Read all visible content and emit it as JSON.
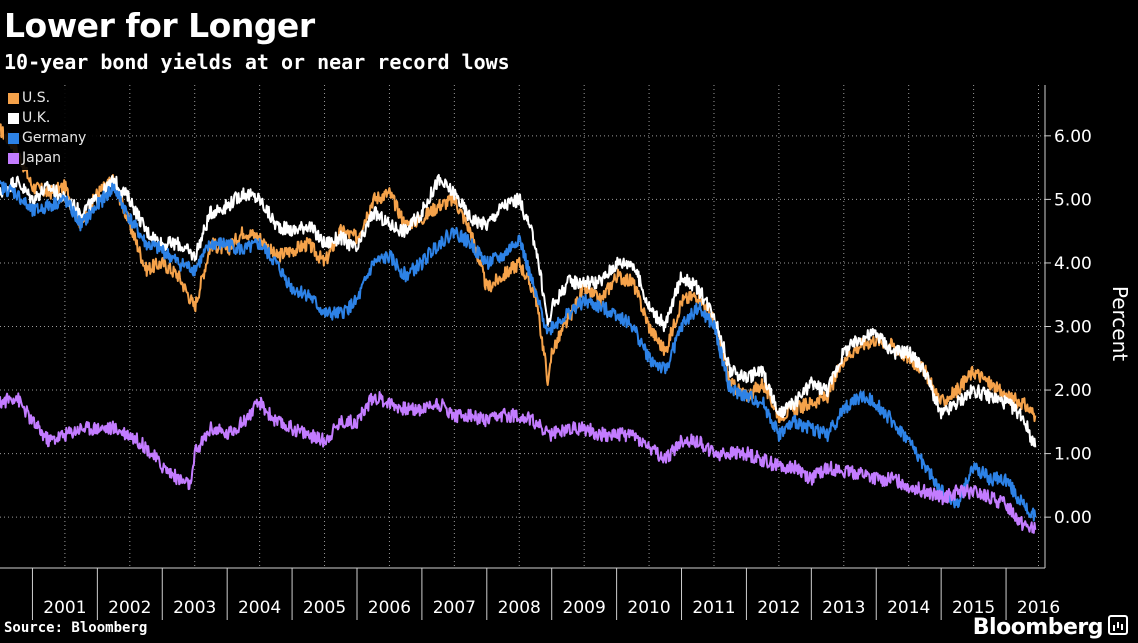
{
  "header": {
    "title": "Lower for Longer",
    "subtitle": "10-year bond yields at or near record lows"
  },
  "footer": {
    "source": "Source: Bloomberg",
    "brand": "Bloomberg"
  },
  "colors": {
    "background": "#000000",
    "us": "#f5a24a",
    "uk": "#ffffff",
    "germany": "#2d82e6",
    "japan": "#c37cff",
    "grid": "#9a9a9a"
  },
  "chart_data": {
    "type": "line",
    "title": "Lower for Longer",
    "subtitle": "10-year bond yields at or near record lows",
    "ylabel": "Percent",
    "ylim": [
      -0.8,
      6.8
    ],
    "yticks": [
      0,
      1,
      2,
      3,
      4,
      5,
      6
    ],
    "ytick_labels": [
      "0.00",
      "1.00",
      "2.00",
      "3.00",
      "4.00",
      "5.00",
      "6.00"
    ],
    "xlim": [
      2000.5,
      2016.6
    ],
    "x_labels": [
      "2001",
      "2002",
      "2003",
      "2004",
      "2005",
      "2006",
      "2007",
      "2008",
      "2009",
      "2010",
      "2011",
      "2012",
      "2013",
      "2014",
      "2015",
      "2016"
    ],
    "grid": true,
    "legend_position": "top-left",
    "series": [
      {
        "name": "U.S.",
        "color": "#f5a24a",
        "x": [
          2000.5,
          2000.75,
          2001.0,
          2001.25,
          2001.5,
          2001.75,
          2002.0,
          2002.25,
          2002.5,
          2002.75,
          2003.0,
          2003.25,
          2003.5,
          2003.75,
          2004.0,
          2004.25,
          2004.5,
          2004.75,
          2005.0,
          2005.25,
          2005.5,
          2005.75,
          2006.0,
          2006.25,
          2006.5,
          2006.75,
          2007.0,
          2007.25,
          2007.5,
          2007.75,
          2008.0,
          2008.25,
          2008.5,
          2008.75,
          2008.95,
          2009.0,
          2009.25,
          2009.5,
          2009.75,
          2010.0,
          2010.25,
          2010.5,
          2010.75,
          2011.0,
          2011.25,
          2011.5,
          2011.75,
          2012.0,
          2012.25,
          2012.5,
          2012.75,
          2013.0,
          2013.25,
          2013.5,
          2013.75,
          2014.0,
          2014.25,
          2014.5,
          2014.75,
          2015.0,
          2015.25,
          2015.5,
          2015.75,
          2016.0,
          2016.25,
          2016.45
        ],
        "values": [
          6.1,
          5.8,
          5.2,
          5.1,
          5.2,
          4.6,
          5.1,
          5.3,
          4.6,
          3.9,
          4.0,
          3.8,
          3.3,
          4.3,
          4.2,
          4.5,
          4.4,
          4.1,
          4.2,
          4.3,
          4.0,
          4.5,
          4.4,
          5.0,
          5.1,
          4.6,
          4.7,
          4.9,
          5.0,
          4.5,
          3.6,
          3.8,
          4.0,
          3.5,
          2.1,
          2.6,
          3.1,
          3.6,
          3.4,
          3.8,
          3.7,
          3.0,
          2.6,
          3.4,
          3.5,
          3.1,
          2.1,
          1.9,
          2.1,
          1.6,
          1.7,
          1.8,
          1.9,
          2.5,
          2.7,
          2.8,
          2.7,
          2.5,
          2.3,
          1.8,
          2.0,
          2.3,
          2.1,
          1.9,
          1.8,
          1.6
        ]
      },
      {
        "name": "U.K.",
        "color": "#ffffff",
        "x": [
          2000.5,
          2000.75,
          2001.0,
          2001.25,
          2001.5,
          2001.75,
          2002.0,
          2002.25,
          2002.5,
          2002.75,
          2003.0,
          2003.25,
          2003.5,
          2003.75,
          2004.0,
          2004.25,
          2004.5,
          2004.75,
          2005.0,
          2005.25,
          2005.5,
          2005.75,
          2006.0,
          2006.25,
          2006.5,
          2006.75,
          2007.0,
          2007.25,
          2007.5,
          2007.75,
          2008.0,
          2008.25,
          2008.5,
          2008.75,
          2008.95,
          2009.0,
          2009.25,
          2009.5,
          2009.75,
          2010.0,
          2010.25,
          2010.5,
          2010.75,
          2011.0,
          2011.25,
          2011.5,
          2011.75,
          2012.0,
          2012.25,
          2012.5,
          2012.75,
          2013.0,
          2013.25,
          2013.5,
          2013.75,
          2014.0,
          2014.25,
          2014.5,
          2014.75,
          2015.0,
          2015.25,
          2015.5,
          2015.75,
          2016.0,
          2016.25,
          2016.45
        ],
        "values": [
          5.1,
          5.3,
          5.0,
          5.2,
          5.0,
          4.8,
          5.0,
          5.3,
          5.0,
          4.5,
          4.3,
          4.3,
          4.1,
          4.8,
          4.9,
          5.1,
          5.0,
          4.6,
          4.5,
          4.6,
          4.3,
          4.4,
          4.2,
          4.8,
          4.6,
          4.5,
          4.8,
          5.3,
          5.1,
          4.7,
          4.6,
          4.9,
          5.0,
          4.3,
          3.0,
          3.3,
          3.7,
          3.7,
          3.7,
          4.0,
          4.0,
          3.3,
          3.0,
          3.8,
          3.6,
          3.2,
          2.3,
          2.2,
          2.3,
          1.6,
          1.8,
          2.1,
          2.0,
          2.6,
          2.8,
          2.9,
          2.6,
          2.6,
          2.3,
          1.6,
          1.8,
          2.0,
          1.9,
          1.8,
          1.6,
          1.1
        ]
      },
      {
        "name": "Germany",
        "color": "#2d82e6",
        "x": [
          2000.5,
          2000.75,
          2001.0,
          2001.25,
          2001.5,
          2001.75,
          2002.0,
          2002.25,
          2002.5,
          2002.75,
          2003.0,
          2003.25,
          2003.5,
          2003.75,
          2004.0,
          2004.25,
          2004.5,
          2004.75,
          2005.0,
          2005.25,
          2005.5,
          2005.75,
          2006.0,
          2006.25,
          2006.5,
          2006.75,
          2007.0,
          2007.25,
          2007.5,
          2007.75,
          2008.0,
          2008.25,
          2008.5,
          2008.75,
          2008.95,
          2009.0,
          2009.25,
          2009.5,
          2009.75,
          2010.0,
          2010.25,
          2010.5,
          2010.75,
          2011.0,
          2011.25,
          2011.5,
          2011.75,
          2012.0,
          2012.25,
          2012.5,
          2012.75,
          2013.0,
          2013.25,
          2013.5,
          2013.75,
          2014.0,
          2014.25,
          2014.5,
          2014.75,
          2015.0,
          2015.25,
          2015.5,
          2015.75,
          2016.0,
          2016.25,
          2016.45
        ],
        "values": [
          5.2,
          5.1,
          4.8,
          4.9,
          5.0,
          4.6,
          4.9,
          5.2,
          4.7,
          4.3,
          4.2,
          4.0,
          3.9,
          4.3,
          4.3,
          4.2,
          4.3,
          4.0,
          3.6,
          3.5,
          3.2,
          3.2,
          3.4,
          4.0,
          4.1,
          3.8,
          4.0,
          4.3,
          4.5,
          4.3,
          4.0,
          4.1,
          4.4,
          3.5,
          2.9,
          3.0,
          3.2,
          3.4,
          3.3,
          3.2,
          3.0,
          2.5,
          2.3,
          3.0,
          3.3,
          3.0,
          2.0,
          1.9,
          1.8,
          1.3,
          1.5,
          1.4,
          1.3,
          1.7,
          1.9,
          1.8,
          1.5,
          1.2,
          0.8,
          0.4,
          0.2,
          0.8,
          0.6,
          0.6,
          0.2,
          0.0
        ]
      },
      {
        "name": "Japan",
        "color": "#c37cff",
        "x": [
          2000.5,
          2000.75,
          2001.0,
          2001.25,
          2001.5,
          2001.75,
          2002.0,
          2002.25,
          2002.5,
          2002.75,
          2003.0,
          2003.25,
          2003.45,
          2003.5,
          2003.75,
          2004.0,
          2004.25,
          2004.5,
          2004.75,
          2005.0,
          2005.25,
          2005.5,
          2005.75,
          2006.0,
          2006.25,
          2006.5,
          2006.75,
          2007.0,
          2007.25,
          2007.5,
          2007.75,
          2008.0,
          2008.25,
          2008.5,
          2008.75,
          2008.95,
          2009.0,
          2009.25,
          2009.5,
          2009.75,
          2010.0,
          2010.25,
          2010.5,
          2010.75,
          2011.0,
          2011.25,
          2011.5,
          2011.75,
          2012.0,
          2012.25,
          2012.5,
          2012.75,
          2013.0,
          2013.25,
          2013.5,
          2013.75,
          2014.0,
          2014.25,
          2014.5,
          2014.75,
          2015.0,
          2015.25,
          2015.5,
          2015.75,
          2016.0,
          2016.25,
          2016.45
        ],
        "values": [
          1.8,
          1.9,
          1.5,
          1.2,
          1.3,
          1.4,
          1.4,
          1.4,
          1.3,
          1.1,
          0.8,
          0.6,
          0.5,
          1.0,
          1.4,
          1.3,
          1.5,
          1.8,
          1.5,
          1.4,
          1.3,
          1.2,
          1.5,
          1.5,
          1.9,
          1.8,
          1.7,
          1.7,
          1.8,
          1.6,
          1.6,
          1.5,
          1.6,
          1.6,
          1.5,
          1.3,
          1.3,
          1.4,
          1.4,
          1.3,
          1.3,
          1.3,
          1.1,
          0.9,
          1.2,
          1.2,
          1.0,
          1.0,
          1.0,
          0.9,
          0.8,
          0.8,
          0.6,
          0.8,
          0.7,
          0.7,
          0.6,
          0.6,
          0.5,
          0.4,
          0.3,
          0.4,
          0.4,
          0.3,
          0.2,
          -0.1,
          -0.2
        ]
      }
    ]
  }
}
